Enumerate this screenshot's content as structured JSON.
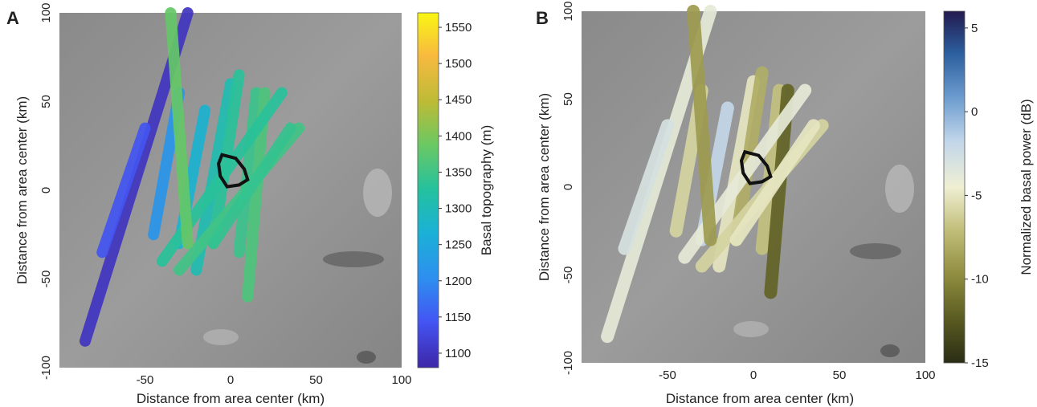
{
  "chart_data": [
    {
      "panel": "A",
      "type": "heatmap",
      "xlabel": "Distance from area center (km)",
      "ylabel": "Distance from area center (km)",
      "xlim": [
        -100,
        100
      ],
      "ylim": [
        -100,
        100
      ],
      "xticks": [
        -50,
        0,
        50,
        100
      ],
      "yticks": [
        -100,
        -50,
        0,
        50,
        100
      ],
      "colorbar": {
        "label": "Basal topography (m)",
        "range": [
          1080,
          1570
        ],
        "ticks": [
          1100,
          1150,
          1200,
          1250,
          1300,
          1350,
          1400,
          1450,
          1500,
          1550
        ],
        "colormap": [
          "#3e26a8",
          "#4355f3",
          "#2e8ef0",
          "#1ab1d6",
          "#23c19f",
          "#6cc862",
          "#bdbb36",
          "#f8ba3f",
          "#f9f614"
        ]
      },
      "tracks": [
        {
          "start": [
            -85,
            -85
          ],
          "end": [
            -25,
            100
          ],
          "value": 1100
        },
        {
          "start": [
            -75,
            -35
          ],
          "end": [
            -50,
            35
          ],
          "value": 1140
        },
        {
          "start": [
            -45,
            -25
          ],
          "end": [
            -30,
            55
          ],
          "value": 1215
        },
        {
          "start": [
            -30,
            -30
          ],
          "end": [
            -15,
            45
          ],
          "value": 1270
        },
        {
          "start": [
            -20,
            -45
          ],
          "end": [
            0,
            60
          ],
          "value": 1305
        },
        {
          "start": [
            -10,
            -30
          ],
          "end": [
            5,
            65
          ],
          "value": 1330
        },
        {
          "start": [
            5,
            -35
          ],
          "end": [
            15,
            55
          ],
          "value": 1345
        },
        {
          "start": [
            10,
            -60
          ],
          "end": [
            20,
            55
          ],
          "value": 1360
        },
        {
          "start": [
            -40,
            -40
          ],
          "end": [
            30,
            55
          ],
          "value": 1330
        },
        {
          "start": [
            -30,
            -45
          ],
          "end": [
            40,
            35
          ],
          "value": 1350
        },
        {
          "start": [
            -25,
            -30
          ],
          "end": [
            -35,
            100
          ],
          "value": 1380
        },
        {
          "start": [
            -10,
            -30
          ],
          "end": [
            35,
            35
          ],
          "value": 1340
        }
      ],
      "outline_label": "",
      "outline": [
        [
          -5,
          20
        ],
        [
          3,
          18
        ],
        [
          8,
          12
        ],
        [
          10,
          6
        ],
        [
          5,
          3
        ],
        [
          -2,
          2
        ],
        [
          -6,
          8
        ],
        [
          -7,
          15
        ]
      ]
    },
    {
      "panel": "B",
      "type": "heatmap",
      "xlabel": "Distance from area center (km)",
      "ylabel": "Distance from area center (km)",
      "xlim": [
        -100,
        100
      ],
      "ylim": [
        -100,
        100
      ],
      "xticks": [
        -50,
        0,
        50,
        100
      ],
      "yticks": [
        -100,
        -50,
        0,
        50,
        100
      ],
      "colorbar": {
        "label": "Normalized basal power (dB)",
        "range": [
          -15,
          6
        ],
        "ticks": [
          -15,
          -10,
          -5,
          0,
          5
        ],
        "colormap": [
          "#2a2d14",
          "#5c5d22",
          "#8f8d3f",
          "#c2bf7b",
          "#efefd3",
          "#c2d6ea",
          "#6f9ed0",
          "#2c5f9e",
          "#231a4f"
        ]
      },
      "tracks": [
        {
          "start": [
            -85,
            -85
          ],
          "end": [
            -25,
            100
          ],
          "value": -4
        },
        {
          "start": [
            -75,
            -35
          ],
          "end": [
            -50,
            35
          ],
          "value": -3
        },
        {
          "start": [
            -45,
            -25
          ],
          "end": [
            -30,
            55
          ],
          "value": -6
        },
        {
          "start": [
            -30,
            -30
          ],
          "end": [
            -15,
            45
          ],
          "value": -2
        },
        {
          "start": [
            -20,
            -45
          ],
          "end": [
            0,
            60
          ],
          "value": -5
        },
        {
          "start": [
            -10,
            -30
          ],
          "end": [
            5,
            65
          ],
          "value": -8
        },
        {
          "start": [
            5,
            -35
          ],
          "end": [
            15,
            55
          ],
          "value": -7
        },
        {
          "start": [
            10,
            -60
          ],
          "end": [
            20,
            55
          ],
          "value": -12
        },
        {
          "start": [
            -40,
            -40
          ],
          "end": [
            30,
            55
          ],
          "value": -4
        },
        {
          "start": [
            -30,
            -45
          ],
          "end": [
            40,
            35
          ],
          "value": -6
        },
        {
          "start": [
            -25,
            -30
          ],
          "end": [
            -35,
            100
          ],
          "value": -9
        },
        {
          "start": [
            -10,
            -30
          ],
          "end": [
            35,
            35
          ],
          "value": -5
        }
      ],
      "outline_label": "",
      "outline": [
        [
          -5,
          20
        ],
        [
          3,
          18
        ],
        [
          8,
          12
        ],
        [
          10,
          6
        ],
        [
          5,
          3
        ],
        [
          -2,
          2
        ],
        [
          -6,
          8
        ],
        [
          -7,
          15
        ]
      ]
    }
  ]
}
